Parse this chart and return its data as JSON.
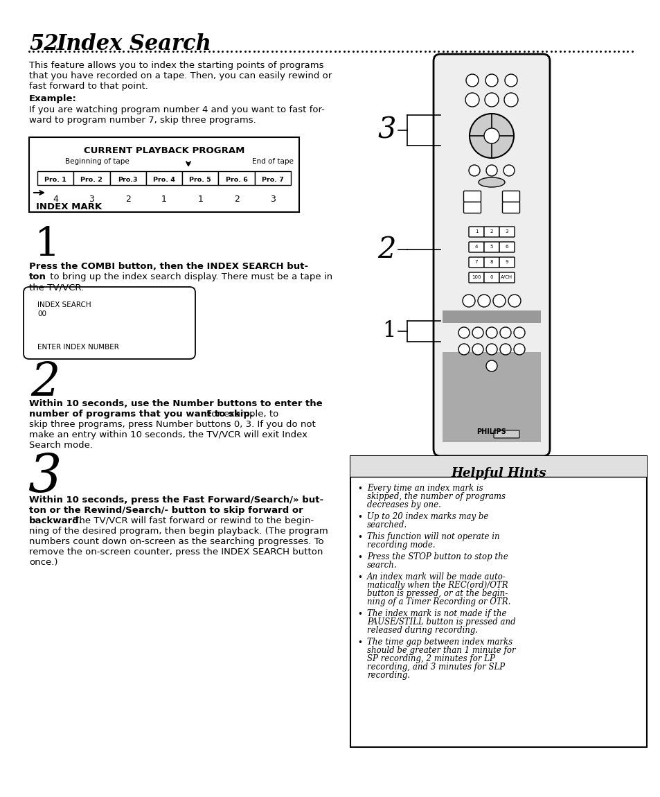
{
  "page_number": "52",
  "title": "Index Search",
  "intro_text": [
    "This feature allows you to index the starting points of programs",
    "that you have recorded on a tape. Then, you can easily rewind or",
    "fast forward to that point."
  ],
  "example_label": "Example:",
  "example_text": [
    "If you are watching program number 4 and you want to fast for-",
    "ward to program number 7, skip three programs."
  ],
  "table_title": "CURRENT PLAYBACK PROGRAM",
  "table_left_label": "Beginning of tape",
  "table_right_label": "End of tape",
  "table_programs": [
    "Pro. 1",
    "Pro. 2",
    "Pro.3",
    "Pro. 4",
    "Pro. 5",
    "Pro. 6",
    "Pro. 7"
  ],
  "index_numbers": [
    "4",
    "3",
    "2",
    "1",
    "1",
    "2",
    "3"
  ],
  "index_mark_label": "INDEX MARK",
  "screen_line1": "INDEX SEARCH",
  "screen_line2": "00",
  "screen_line3": "ENTER INDEX NUMBER",
  "helpful_hints_title": "Helpful Hints",
  "bg_color": "#ffffff",
  "text_color": "#000000"
}
